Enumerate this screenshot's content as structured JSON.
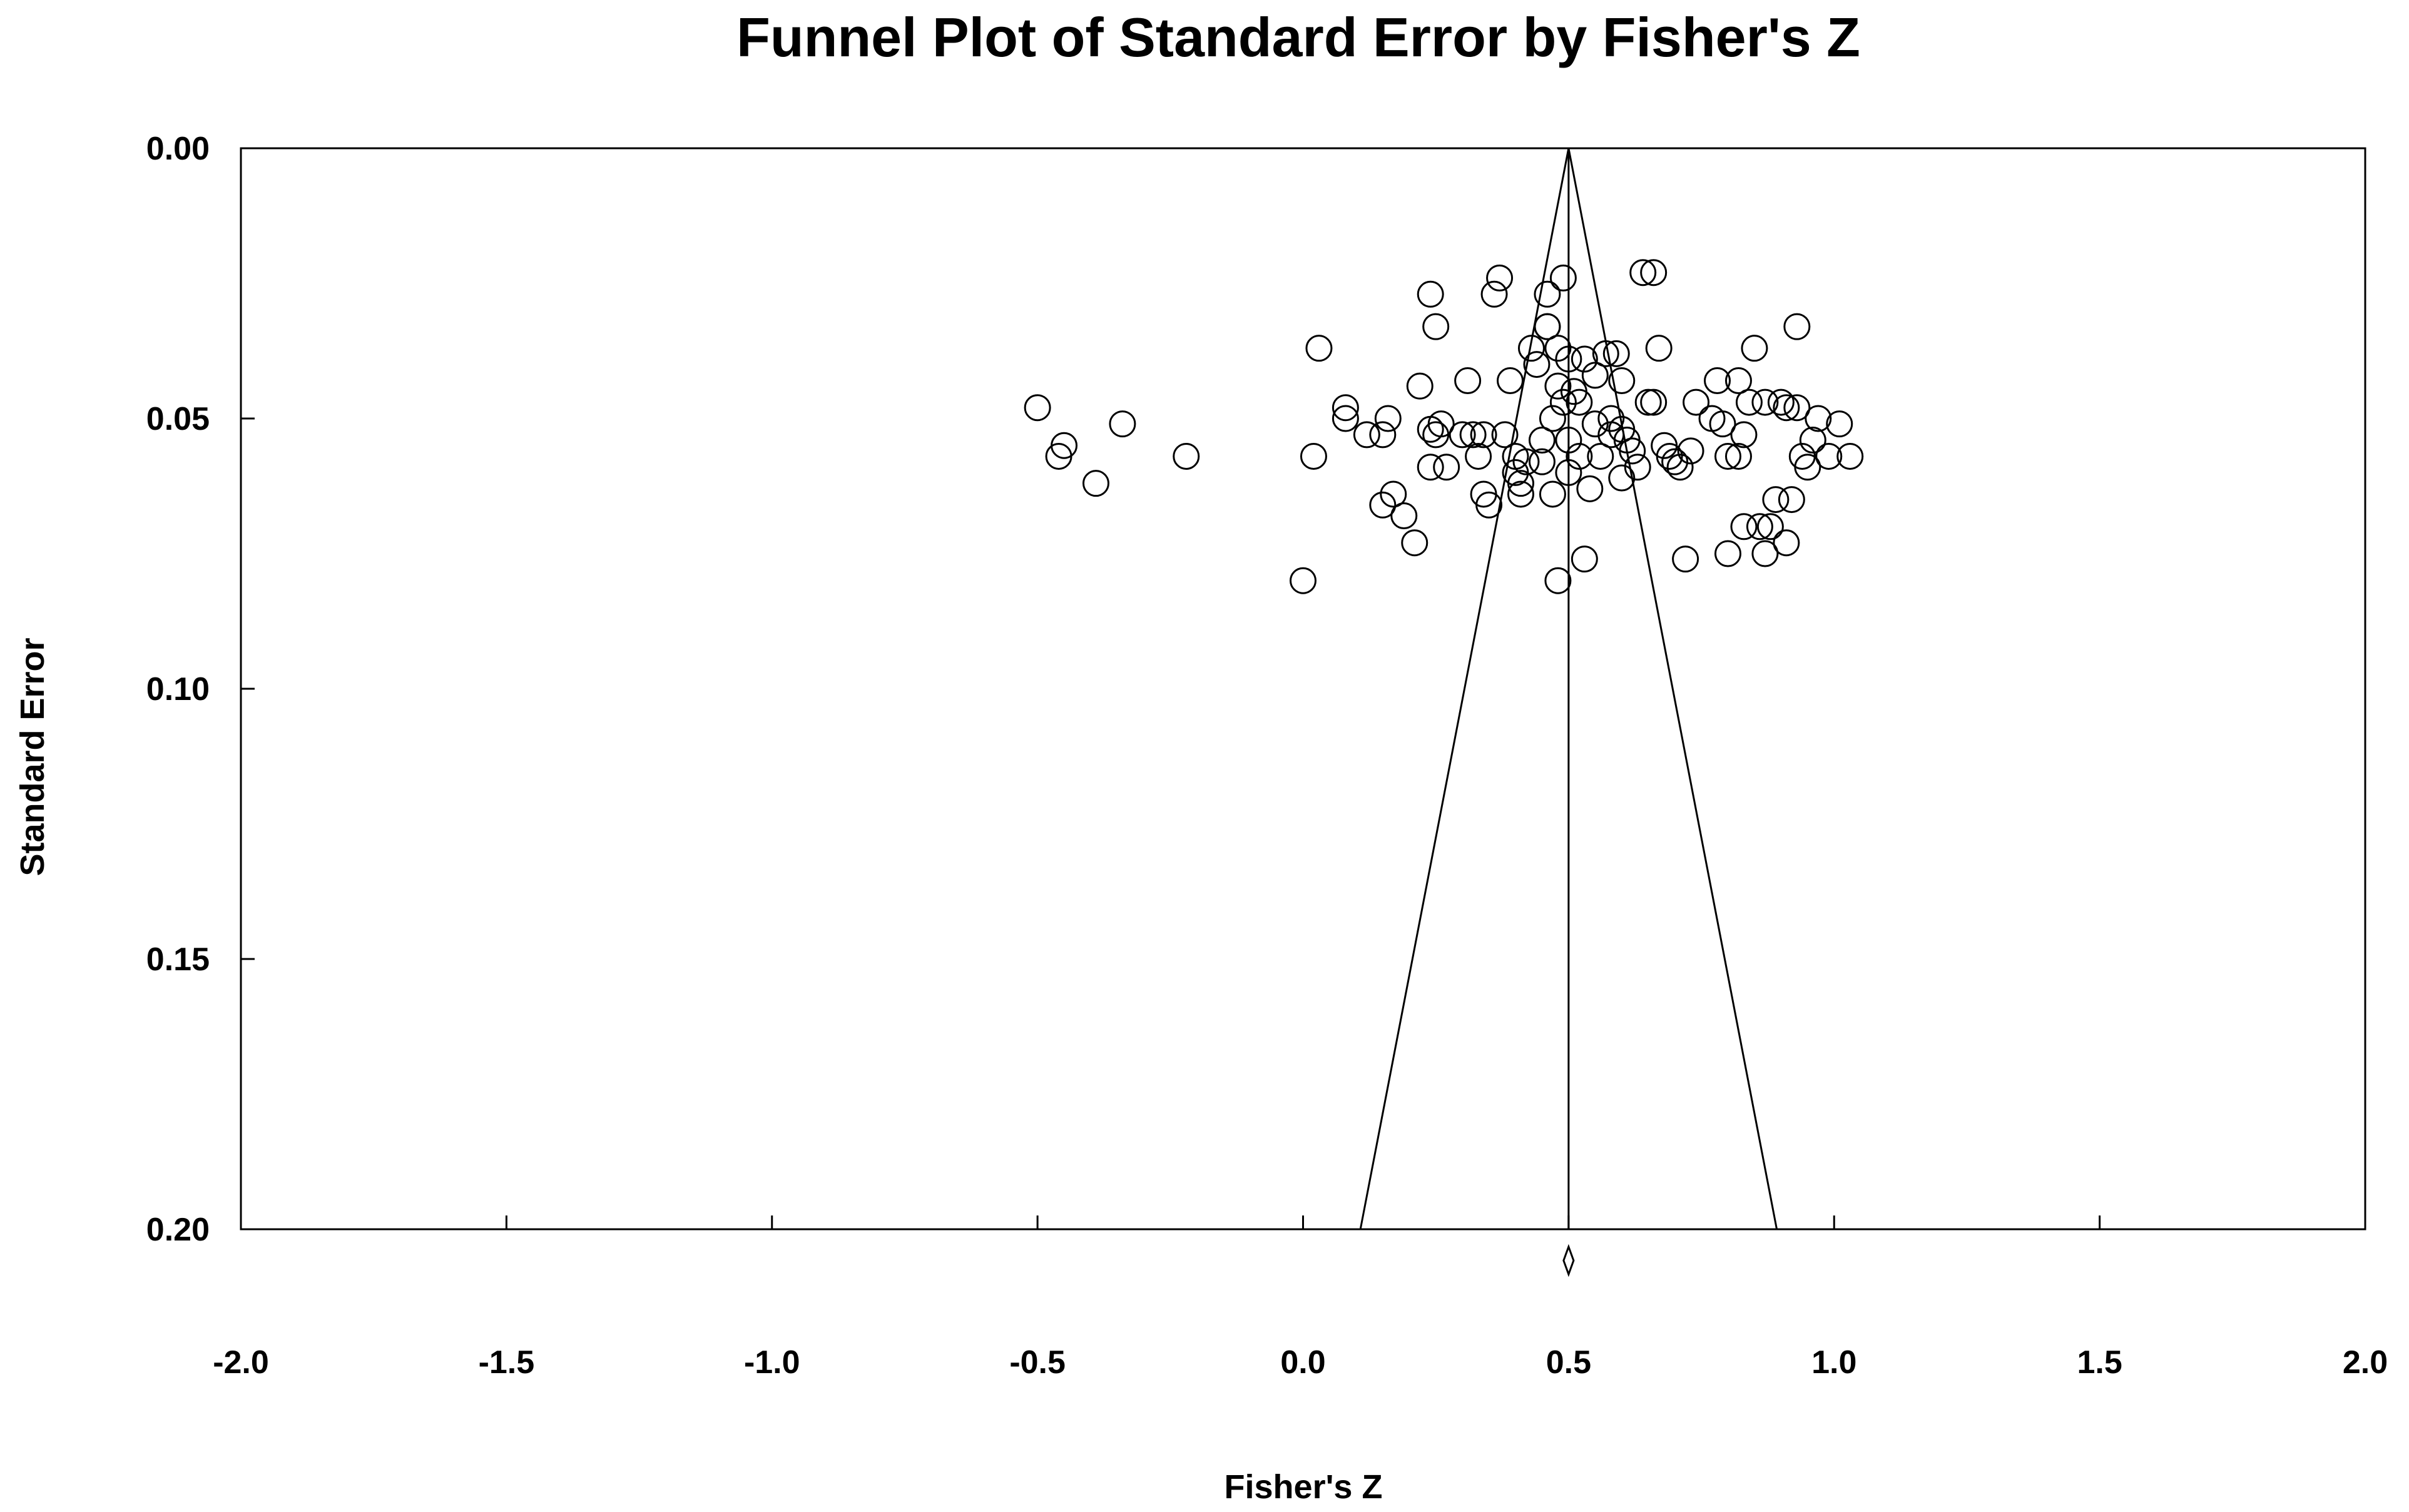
{
  "chart_data": {
    "type": "scatter",
    "title": "Funnel Plot of Standard Error by Fisher's Z",
    "xlabel": "Fisher's Z",
    "ylabel": "Standard Error",
    "xlim": [
      -2.0,
      2.0
    ],
    "ylim": [
      0.0,
      0.2
    ],
    "y_inverted": true,
    "x_ticks": [
      "-2.0",
      "-1.5",
      "-1.0",
      "-0.5",
      "0.0",
      "0.5",
      "1.0",
      "1.5",
      "2.0"
    ],
    "y_ticks": [
      "0.00",
      "0.05",
      "0.10",
      "0.15",
      "0.20"
    ],
    "grid": false,
    "legend": "none",
    "summary_effect": 0.5,
    "funnel_limits_at_se_0_2": [
      0.108,
      0.892
    ],
    "marker": "open-circle",
    "points": [
      [
        -0.5,
        0.048
      ],
      [
        -0.46,
        0.057
      ],
      [
        -0.45,
        0.055
      ],
      [
        -0.34,
        0.051
      ],
      [
        -0.39,
        0.062
      ],
      [
        -0.22,
        0.057
      ],
      [
        0.0,
        0.08
      ],
      [
        0.02,
        0.057
      ],
      [
        0.03,
        0.037
      ],
      [
        0.08,
        0.05
      ],
      [
        0.08,
        0.048
      ],
      [
        0.12,
        0.053
      ],
      [
        0.15,
        0.053
      ],
      [
        0.16,
        0.05
      ],
      [
        0.15,
        0.066
      ],
      [
        0.17,
        0.064
      ],
      [
        0.19,
        0.068
      ],
      [
        0.21,
        0.073
      ],
      [
        0.22,
        0.044
      ],
      [
        0.24,
        0.027
      ],
      [
        0.25,
        0.033
      ],
      [
        0.24,
        0.052
      ],
      [
        0.25,
        0.053
      ],
      [
        0.24,
        0.059
      ],
      [
        0.26,
        0.051
      ],
      [
        0.27,
        0.059
      ],
      [
        0.3,
        0.053
      ],
      [
        0.31,
        0.043
      ],
      [
        0.32,
        0.053
      ],
      [
        0.33,
        0.057
      ],
      [
        0.34,
        0.053
      ],
      [
        0.34,
        0.064
      ],
      [
        0.35,
        0.066
      ],
      [
        0.36,
        0.027
      ],
      [
        0.37,
        0.024
      ],
      [
        0.38,
        0.053
      ],
      [
        0.39,
        0.043
      ],
      [
        0.4,
        0.057
      ],
      [
        0.4,
        0.06
      ],
      [
        0.41,
        0.064
      ],
      [
        0.42,
        0.058
      ],
      [
        0.41,
        0.062
      ],
      [
        0.43,
        0.037
      ],
      [
        0.44,
        0.04
      ],
      [
        0.45,
        0.058
      ],
      [
        0.45,
        0.054
      ],
      [
        0.46,
        0.027
      ],
      [
        0.46,
        0.033
      ],
      [
        0.46,
        0.033
      ],
      [
        0.47,
        0.05
      ],
      [
        0.47,
        0.064
      ],
      [
        0.48,
        0.037
      ],
      [
        0.48,
        0.044
      ],
      [
        0.49,
        0.024
      ],
      [
        0.49,
        0.047
      ],
      [
        0.48,
        0.08
      ],
      [
        0.5,
        0.039
      ],
      [
        0.5,
        0.054
      ],
      [
        0.5,
        0.06
      ],
      [
        0.51,
        0.045
      ],
      [
        0.52,
        0.057
      ],
      [
        0.52,
        0.047
      ],
      [
        0.53,
        0.039
      ],
      [
        0.53,
        0.076
      ],
      [
        0.54,
        0.063
      ],
      [
        0.55,
        0.051
      ],
      [
        0.55,
        0.042
      ],
      [
        0.56,
        0.057
      ],
      [
        0.57,
        0.038
      ],
      [
        0.58,
        0.05
      ],
      [
        0.58,
        0.053
      ],
      [
        0.59,
        0.038
      ],
      [
        0.6,
        0.043
      ],
      [
        0.6,
        0.052
      ],
      [
        0.6,
        0.061
      ],
      [
        0.61,
        0.054
      ],
      [
        0.62,
        0.056
      ],
      [
        0.63,
        0.059
      ],
      [
        0.64,
        0.023
      ],
      [
        0.65,
        0.047
      ],
      [
        0.66,
        0.023
      ],
      [
        0.66,
        0.047
      ],
      [
        0.67,
        0.037
      ],
      [
        0.68,
        0.055
      ],
      [
        0.69,
        0.057
      ],
      [
        0.7,
        0.058
      ],
      [
        0.71,
        0.059
      ],
      [
        0.72,
        0.076
      ],
      [
        0.73,
        0.056
      ],
      [
        0.74,
        0.047
      ],
      [
        0.77,
        0.05
      ],
      [
        0.78,
        0.043
      ],
      [
        0.79,
        0.051
      ],
      [
        0.8,
        0.057
      ],
      [
        0.8,
        0.075
      ],
      [
        0.82,
        0.043
      ],
      [
        0.82,
        0.057
      ],
      [
        0.83,
        0.07
      ],
      [
        0.83,
        0.053
      ],
      [
        0.84,
        0.047
      ],
      [
        0.85,
        0.037
      ],
      [
        0.86,
        0.07
      ],
      [
        0.87,
        0.075
      ],
      [
        0.87,
        0.047
      ],
      [
        0.88,
        0.07
      ],
      [
        0.89,
        0.065
      ],
      [
        0.9,
        0.047
      ],
      [
        0.91,
        0.048
      ],
      [
        0.91,
        0.073
      ],
      [
        0.92,
        0.065
      ],
      [
        0.93,
        0.033
      ],
      [
        0.93,
        0.048
      ],
      [
        0.94,
        0.057
      ],
      [
        0.95,
        0.059
      ],
      [
        0.96,
        0.054
      ],
      [
        0.97,
        0.05
      ],
      [
        0.99,
        0.057
      ],
      [
        1.01,
        0.051
      ],
      [
        1.03,
        0.057
      ]
    ]
  }
}
